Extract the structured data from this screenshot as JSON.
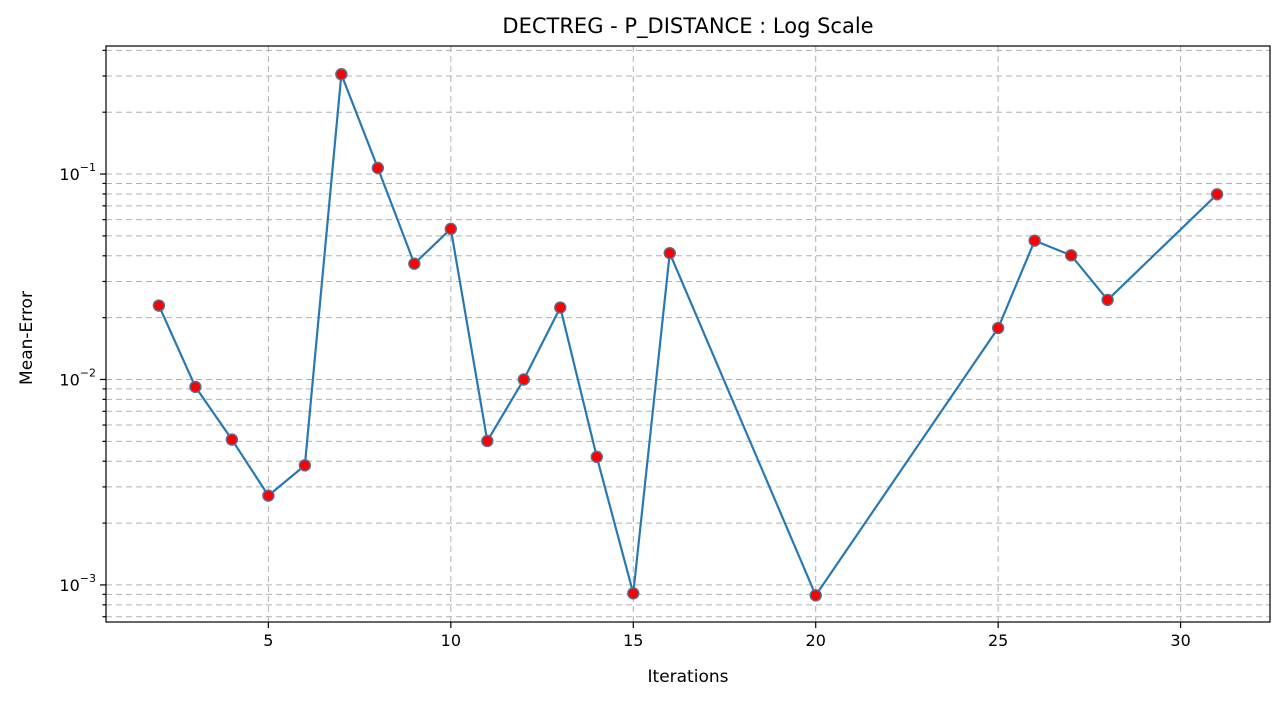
{
  "chart_data": {
    "type": "line",
    "title": "DECTREG - P_DISTANCE : Log Scale",
    "xlabel": "Iterations",
    "ylabel": "Mean-Error",
    "yscale": "log",
    "grid": true,
    "xlim": [
      0.55,
      32.45
    ],
    "ylim": [
      0.00066,
      0.42
    ],
    "xticks": [
      5,
      10,
      15,
      20,
      25,
      30
    ],
    "yticks": [
      {
        "value": 0.001,
        "base": "10",
        "exp": "−3"
      },
      {
        "value": 0.01,
        "base": "10",
        "exp": "−2"
      },
      {
        "value": 0.1,
        "base": "10",
        "exp": "−1"
      }
    ],
    "line_color": "#2878b5",
    "marker_color": "#ff0000",
    "marker_edge": "#5a6f8f",
    "series": [
      {
        "x": [
          2,
          3,
          4,
          5,
          6,
          7,
          8,
          9,
          10,
          11,
          12,
          13,
          14,
          15,
          16,
          20,
          25,
          26,
          27,
          28,
          31
        ],
        "values": [
          0.0229,
          0.0092,
          0.0051,
          0.00272,
          0.00382,
          0.306,
          0.107,
          0.0366,
          0.0541,
          0.00502,
          0.01,
          0.0224,
          0.0042,
          0.00091,
          0.0412,
          0.00089,
          0.0178,
          0.0474,
          0.0402,
          0.0244,
          0.0797
        ]
      }
    ]
  }
}
